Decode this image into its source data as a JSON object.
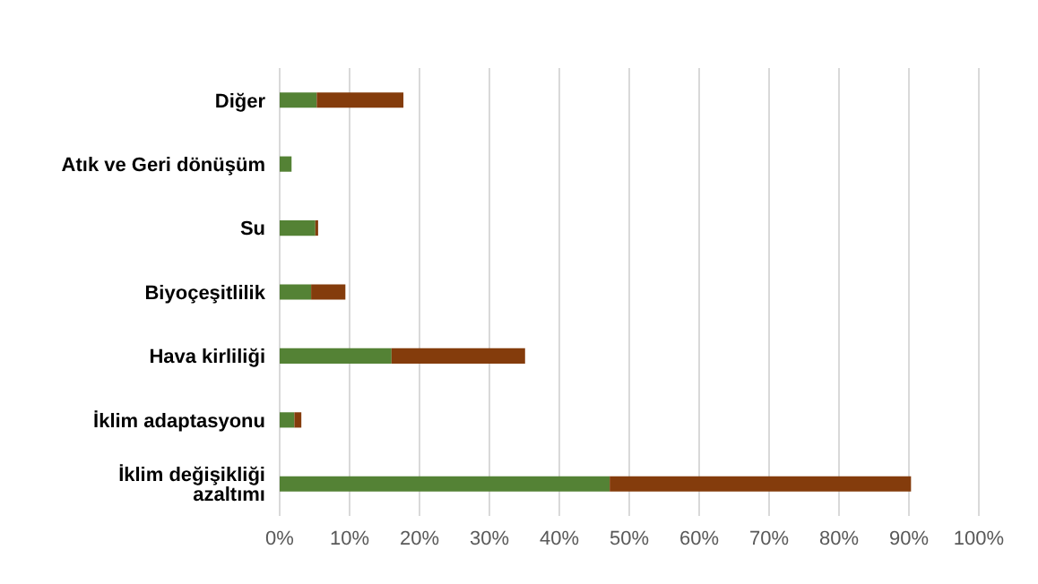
{
  "chart_data": {
    "type": "bar",
    "orientation": "horizontal",
    "stacked": true,
    "categories": [
      "Diğer",
      "Atık ve Geri dönüşüm",
      "Su",
      "Biyoçeşitlilik",
      "Hava kirliliği",
      "İklim adaptasyonu",
      "İklim değişikliği azaltımı"
    ],
    "series": [
      {
        "color": "#548235",
        "values": [
          5.3,
          1.7,
          5.1,
          4.5,
          16.0,
          2.1,
          47.2
        ]
      },
      {
        "color": "#843c0c",
        "values": [
          12.4,
          0,
          0.4,
          4.9,
          19.1,
          1.0,
          43.1
        ]
      }
    ],
    "xlim": [
      0,
      100
    ],
    "xticks": [
      {
        "value": 0,
        "label": "0%"
      },
      {
        "value": 10,
        "label": "10%"
      },
      {
        "value": 20,
        "label": "20%"
      },
      {
        "value": 30,
        "label": "30%"
      },
      {
        "value": 40,
        "label": "40%"
      },
      {
        "value": 50,
        "label": "50%"
      },
      {
        "value": 60,
        "label": "60%"
      },
      {
        "value": 70,
        "label": "70%"
      },
      {
        "value": 80,
        "label": "80%"
      },
      {
        "value": 90,
        "label": "90%"
      },
      {
        "value": 100,
        "label": "100%"
      }
    ],
    "grid": "x"
  }
}
